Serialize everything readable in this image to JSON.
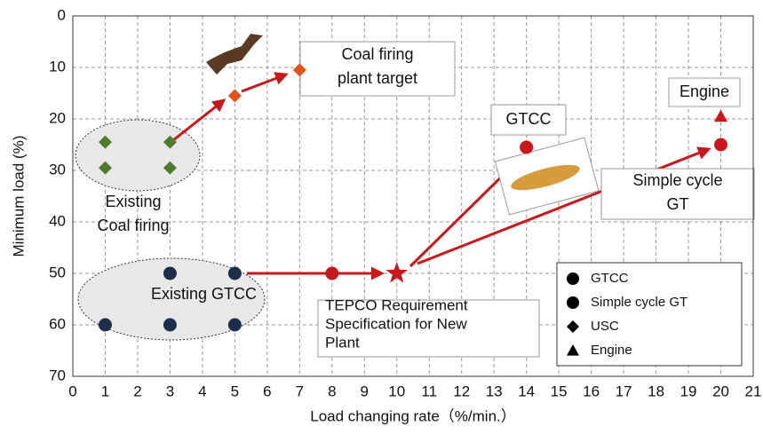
{
  "chart_data": {
    "type": "scatter",
    "xlabel": "Load changing rate（%/min.）",
    "ylabel": "Minimum load (%)",
    "xlim": [
      0,
      21
    ],
    "xticks": [
      0,
      1,
      2,
      3,
      4,
      5,
      6,
      7,
      8,
      9,
      10,
      11,
      12,
      13,
      14,
      15,
      16,
      17,
      18,
      19,
      20,
      21
    ],
    "ylim": [
      0,
      70
    ],
    "yticks": [
      0,
      10,
      20,
      30,
      40,
      50,
      60,
      70
    ],
    "y_inverted": true,
    "grid": true,
    "series": [
      {
        "marker": "diamond",
        "color": "#4e7a2e",
        "x": [
          1,
          1,
          3,
          3
        ],
        "values": [
          24.5,
          29.5,
          24.5,
          29.5
        ]
      },
      {
        "marker": "circle",
        "color": "#1c2e4a",
        "x": [
          3,
          5,
          1,
          3,
          5
        ],
        "values": [
          50,
          50,
          60,
          60,
          60
        ]
      },
      {
        "marker": "diamond",
        "color": "#e0531c",
        "x": [
          5,
          7
        ],
        "values": [
          15.5,
          10.5
        ]
      },
      {
        "marker": "circle",
        "color": "#c8181e",
        "x": [
          8,
          14,
          20
        ],
        "values": [
          50,
          25.5,
          25
        ]
      },
      {
        "marker": "star",
        "color": "#c8181e",
        "x": [
          10
        ],
        "values": [
          50
        ]
      },
      {
        "marker": "triangle",
        "color": "#c8181e",
        "x": [
          20
        ],
        "values": [
          19.5
        ]
      }
    ],
    "annotations": [
      {
        "lines": [
          "Coal firing",
          "plant target"
        ]
      },
      {
        "lines": [
          "Engine"
        ]
      },
      {
        "lines": [
          "GTCC"
        ]
      },
      {
        "lines": [
          "Simple cycle",
          "GT"
        ]
      },
      {
        "lines": [
          "Existing",
          "Coal firing"
        ]
      },
      {
        "lines": [
          "Existing GTCC"
        ]
      },
      {
        "lines": [
          "TEPCO Requirement",
          "Specification for New",
          "Plant"
        ]
      }
    ],
    "legend": [
      {
        "label": "GTCC",
        "marker": "circle"
      },
      {
        "label": "Simple cycle GT",
        "marker": "circle"
      },
      {
        "label": "USC",
        "marker": "diamond"
      },
      {
        "label": "Engine",
        "marker": "triangle"
      }
    ]
  }
}
